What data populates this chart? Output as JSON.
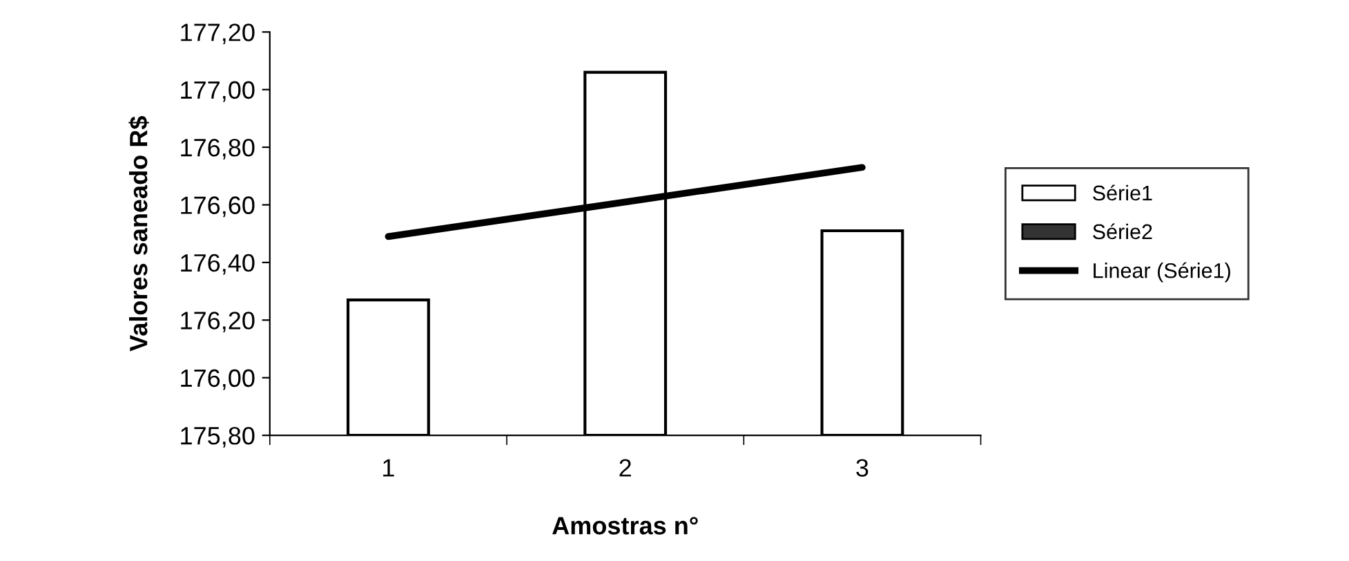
{
  "chart_data": {
    "type": "bar",
    "xlabel": "Amostras n°",
    "ylabel": "Valores saneado R$",
    "categories": [
      "1",
      "2",
      "3"
    ],
    "series": [
      {
        "name": "Série1",
        "color": "#ffffff",
        "values": [
          176.27,
          177.06,
          176.51
        ]
      },
      {
        "name": "Série2",
        "color": "#333333",
        "values": [
          null,
          null,
          null
        ]
      },
      {
        "name": "Linear (Série1)",
        "type": "line",
        "color": "#000000",
        "values": [
          176.49,
          176.61,
          176.73
        ]
      }
    ],
    "ylim": [
      175.8,
      177.2
    ],
    "yticks": [
      {
        "value": 175.8,
        "label": "175,80"
      },
      {
        "value": 176.0,
        "label": "176,00"
      },
      {
        "value": 176.2,
        "label": "176,20"
      },
      {
        "value": 176.4,
        "label": "176,40"
      },
      {
        "value": 176.6,
        "label": "176,60"
      },
      {
        "value": 176.8,
        "label": "176,80"
      },
      {
        "value": 177.0,
        "label": "177,00"
      },
      {
        "value": 177.2,
        "label": "177,20"
      }
    ],
    "grid": false,
    "legend": "right",
    "marker": "none",
    "line_style": "solid"
  }
}
